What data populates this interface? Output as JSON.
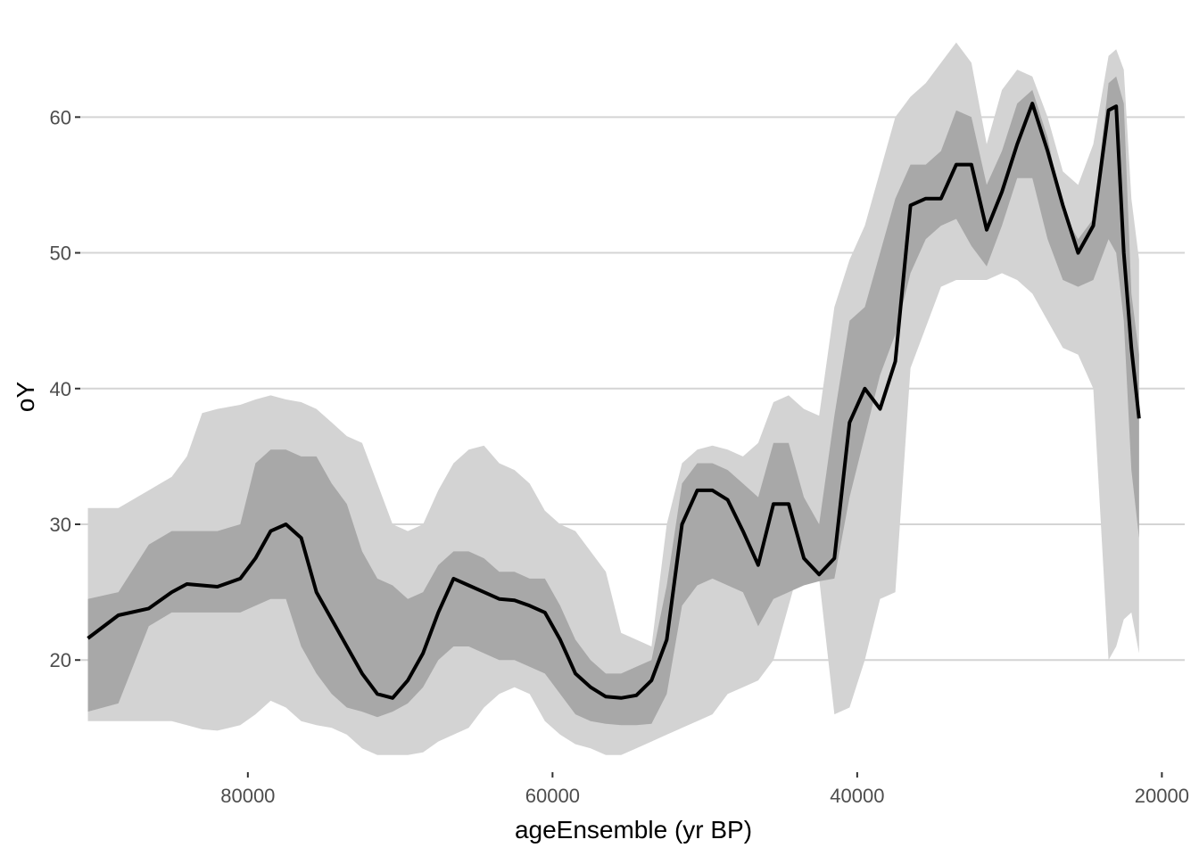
{
  "chart_data": {
    "type": "area",
    "title": "",
    "xlabel": "ageEnsemble (yr BP)",
    "ylabel": "oY",
    "x_reversed": true,
    "xlim": [
      91000,
      18500
    ],
    "ylim": [
      12000,
      66000
    ],
    "ylim_note": "",
    "x_ticks": [
      80000,
      60000,
      40000,
      20000
    ],
    "y_ticks": [
      20,
      30,
      40,
      50,
      60
    ],
    "grid": "horizontal",
    "legend": "none",
    "colors": {
      "outer_band": "#d3d3d3",
      "inner_band": "#a8a8a8",
      "median_line": "#000000",
      "grid": "#d4d4d4"
    },
    "x": [
      90500,
      88500,
      86500,
      85000,
      84000,
      83000,
      82000,
      80500,
      79500,
      78500,
      77500,
      76500,
      75500,
      74500,
      73500,
      72500,
      71500,
      70500,
      69500,
      68500,
      67500,
      66500,
      65500,
      64500,
      63500,
      62500,
      61500,
      60500,
      59500,
      58500,
      57500,
      56500,
      55500,
      54500,
      53500,
      52500,
      51500,
      50500,
      49500,
      48500,
      47500,
      46500,
      45500,
      44500,
      43500,
      42500,
      41500,
      40500,
      39500,
      38500,
      37500,
      36500,
      35500,
      34500,
      33500,
      32500,
      31500,
      30500,
      29500,
      28500,
      27500,
      26500,
      25500,
      24500,
      23500,
      23000,
      22500,
      22000,
      21500
    ],
    "series": [
      {
        "name": "",
        "role": "outer-upper",
        "values": [
          31.2,
          31.2,
          32.5,
          33.5,
          35.0,
          38.2,
          38.5,
          38.8,
          39.2,
          39.5,
          39.2,
          39.0,
          38.5,
          37.5,
          36.5,
          36.0,
          33.0,
          30.0,
          29.5,
          30.0,
          32.5,
          34.5,
          35.5,
          35.8,
          34.5,
          34.0,
          33.0,
          31.0,
          30.0,
          29.5,
          28.0,
          26.5,
          22.0,
          21.5,
          21.0,
          30.0,
          34.5,
          35.5,
          35.8,
          35.5,
          35.0,
          36.0,
          39.0,
          39.5,
          38.5,
          38.0,
          46.0,
          49.5,
          52.0,
          56.0,
          60.0,
          61.5,
          62.5,
          64.0,
          65.5,
          64.0,
          58.0,
          62.0,
          63.5,
          63.0,
          60.0,
          56.0,
          55.0,
          58.0,
          64.5,
          65.0,
          63.5,
          54.0,
          49.5
        ]
      },
      {
        "name": "",
        "role": "inner-upper",
        "values": [
          24.5,
          25.0,
          28.5,
          29.5,
          29.5,
          29.5,
          29.5,
          30.0,
          34.5,
          35.5,
          35.5,
          35.0,
          35.0,
          33.0,
          31.5,
          28.0,
          26.0,
          25.5,
          24.5,
          25.0,
          27.0,
          28.0,
          28.0,
          27.5,
          26.5,
          26.5,
          26.0,
          26.0,
          24.0,
          21.5,
          20.0,
          19.0,
          19.0,
          19.5,
          20.0,
          25.5,
          33.0,
          34.5,
          34.5,
          34.0,
          33.0,
          32.0,
          36.0,
          36.0,
          32.0,
          30.0,
          38.0,
          45.0,
          46.0,
          50.0,
          54.0,
          56.5,
          56.5,
          57.5,
          60.5,
          60.0,
          55.0,
          57.5,
          61.0,
          62.0,
          58.5,
          53.0,
          51.0,
          52.5,
          62.5,
          63.0,
          61.0,
          47.0,
          42.5
        ]
      },
      {
        "name": "",
        "role": "median",
        "values": [
          21.6,
          23.3,
          23.8,
          25.0,
          25.6,
          25.5,
          25.4,
          26.0,
          27.5,
          29.5,
          30.0,
          29.0,
          25.0,
          23.0,
          21.0,
          19.0,
          17.5,
          17.2,
          18.5,
          20.5,
          23.5,
          26.0,
          25.5,
          25.0,
          24.5,
          24.4,
          24.0,
          23.5,
          21.5,
          19.0,
          18.0,
          17.3,
          17.2,
          17.4,
          18.5,
          21.5,
          30.0,
          32.5,
          32.5,
          31.8,
          29.5,
          27.0,
          31.5,
          31.5,
          27.5,
          26.3,
          27.5,
          37.5,
          40.0,
          38.5,
          42.0,
          53.5,
          54.0,
          54.0,
          56.5,
          56.5,
          51.7,
          54.5,
          58.0,
          61.0,
          57.5,
          53.5,
          50.0,
          52.0,
          60.5,
          60.8,
          50.0,
          43.0,
          37.8
        ]
      },
      {
        "name": "",
        "role": "inner-lower",
        "values": [
          16.2,
          16.8,
          22.5,
          23.5,
          23.5,
          23.5,
          23.5,
          23.5,
          24.0,
          24.5,
          24.5,
          21.0,
          19.0,
          17.5,
          16.5,
          16.2,
          15.8,
          16.2,
          16.8,
          18.0,
          20.0,
          21.0,
          21.0,
          20.5,
          20.0,
          20.0,
          19.5,
          19.0,
          17.5,
          16.0,
          15.5,
          15.3,
          15.2,
          15.2,
          15.3,
          17.5,
          24.0,
          25.5,
          26.0,
          25.5,
          25.0,
          22.5,
          24.5,
          25.0,
          25.5,
          25.8,
          26.0,
          32.0,
          36.5,
          41.0,
          44.0,
          48.5,
          51.0,
          52.0,
          52.5,
          50.5,
          49.0,
          52.0,
          55.5,
          55.5,
          51.0,
          48.0,
          47.5,
          48.0,
          51.0,
          50.0,
          45.0,
          34.0,
          29.0
        ]
      },
      {
        "name": "",
        "role": "outer-lower",
        "values": [
          15.5,
          15.5,
          15.5,
          15.5,
          15.2,
          14.9,
          14.8,
          15.2,
          16.0,
          17.0,
          16.5,
          15.5,
          15.2,
          15.0,
          14.5,
          13.5,
          13.0,
          13.0,
          13.0,
          13.2,
          14.0,
          14.5,
          15.0,
          16.5,
          17.5,
          18.0,
          17.5,
          15.5,
          14.5,
          13.8,
          13.5,
          13.0,
          13.0,
          13.5,
          14.0,
          14.5,
          15.0,
          15.5,
          16.0,
          17.5,
          18.0,
          18.5,
          20.0,
          24.0,
          28.0,
          26.0,
          16.0,
          16.5,
          20.0,
          24.5,
          25.0,
          41.5,
          44.5,
          47.5,
          48.0,
          48.0,
          48.0,
          48.5,
          48.0,
          47.0,
          45.0,
          43.0,
          42.5,
          40.0,
          20.0,
          21.0,
          23.0,
          23.5,
          20.5
        ]
      }
    ]
  }
}
